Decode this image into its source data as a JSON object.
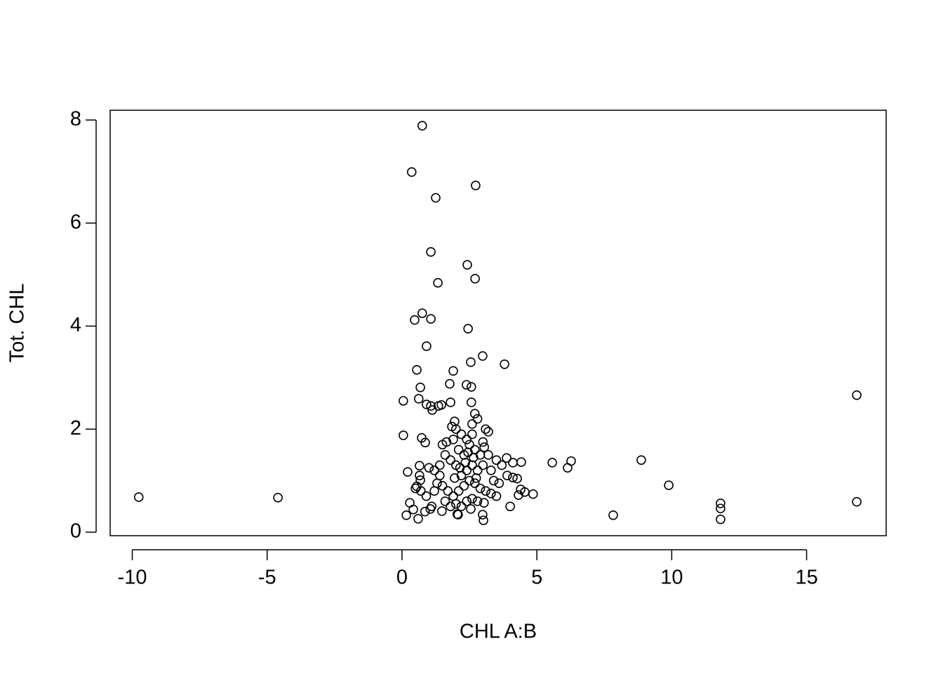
{
  "chart_data": {
    "type": "scatter",
    "x_label": "CHL A:B",
    "y_label": "Tot. CHL",
    "xlim": [
      -10.82,
      17.95
    ],
    "ylim": [
      -0.068,
      8.19
    ],
    "xticks": [
      -10,
      -5,
      0,
      5,
      10,
      15
    ],
    "yticks": [
      0,
      2,
      4,
      6,
      8
    ],
    "color": "#000000",
    "x": [
      -9.76,
      -4.6,
      0.75,
      0.36,
      2.73,
      1.25,
      1.07,
      2.42,
      2.71,
      1.33,
      0.75,
      0.47,
      1.07,
      2.45,
      0.91,
      2.99,
      3.8,
      2.55,
      0.55,
      1.9,
      1.77,
      2.39,
      2.57,
      0.68,
      16.86,
      0.05,
      0.62,
      0.91,
      1.46,
      1.8,
      2.57,
      0.05,
      0.73,
      0.86,
      1.07,
      1.12,
      8.87,
      9.89,
      5.57,
      6.14,
      6.27,
      4.42,
      4.11,
      3.88,
      7.83,
      11.81,
      11.81,
      11.81,
      16.86,
      4.86,
      4.55,
      4.32,
      4.4,
      4.27,
      4.11,
      4.01,
      0.16,
      0.21,
      0.29,
      0.6,
      0.68,
      0.65,
      0.55,
      0.42,
      3.02,
      2.99,
      3.04,
      2.08,
      1.48,
      2.0,
      2.2,
      2.4,
      2.6,
      2.7,
      2.8,
      3.1,
      3.2,
      1.9,
      2.1,
      2.3,
      2.5,
      2.7,
      2.9,
      3.2,
      3.0,
      2.8,
      2.6,
      2.4,
      2.2,
      2.0,
      1.8,
      1.6,
      1.5,
      1.4,
      1.2,
      1.0,
      1.3,
      1.5,
      1.7,
      1.9,
      2.1,
      2.3,
      2.5,
      2.7,
      2.9,
      3.1,
      3.3,
      3.5,
      3.6,
      3.7,
      3.9,
      3.4,
      3.3,
      2.0,
      2.2,
      2.4,
      2.6,
      2.8,
      1.8,
      1.6,
      1.1,
      0.9,
      0.7,
      0.5,
      1.2,
      1.4,
      2.05,
      2.55,
      1.95,
      2.35,
      2.45,
      2.65,
      2.15,
      2.75,
      3.05,
      1.65,
      1.35,
      1.95,
      1.85,
      2.6,
      3.0,
      3.5,
      0.65,
      0.85,
      1.05
    ],
    "y": [
      0.68,
      0.67,
      7.89,
      6.99,
      6.73,
      6.49,
      5.44,
      5.19,
      4.92,
      4.84,
      4.25,
      4.12,
      4.14,
      3.95,
      3.61,
      3.42,
      3.26,
      3.3,
      3.15,
      3.13,
      2.88,
      2.86,
      2.82,
      2.81,
      2.66,
      2.55,
      2.59,
      2.48,
      2.47,
      2.52,
      2.52,
      1.88,
      1.83,
      1.74,
      2.45,
      2.37,
      1.4,
      0.91,
      1.35,
      1.25,
      1.38,
      1.36,
      1.35,
      1.44,
      0.33,
      0.56,
      0.46,
      0.25,
      0.59,
      0.74,
      0.78,
      0.72,
      0.83,
      1.04,
      1.06,
      0.5,
      0.33,
      1.17,
      0.57,
      0.26,
      1.01,
      1.29,
      0.89,
      0.44,
      0.23,
      0.34,
      0.57,
      0.34,
      0.41,
      2.0,
      1.9,
      1.8,
      2.1,
      2.3,
      2.2,
      2.0,
      1.95,
      1.8,
      1.6,
      1.5,
      1.7,
      1.6,
      1.5,
      1.5,
      1.3,
      1.2,
      1.3,
      1.2,
      1.1,
      1.3,
      1.4,
      1.5,
      1.7,
      1.3,
      1.2,
      1.25,
      0.95,
      0.9,
      0.8,
      0.7,
      0.8,
      0.9,
      1.0,
      0.95,
      0.85,
      0.8,
      0.75,
      0.7,
      0.95,
      1.3,
      1.1,
      1.0,
      1.2,
      0.55,
      0.5,
      0.6,
      0.65,
      0.6,
      0.5,
      0.6,
      0.5,
      0.7,
      0.8,
      0.85,
      0.8,
      1.1,
      0.35,
      0.45,
      1.05,
      1.35,
      1.55,
      1.45,
      1.25,
      1.05,
      1.65,
      1.75,
      2.45,
      2.15,
      2.05,
      1.9,
      1.75,
      1.4,
      1.1,
      0.4,
      0.45
    ]
  }
}
